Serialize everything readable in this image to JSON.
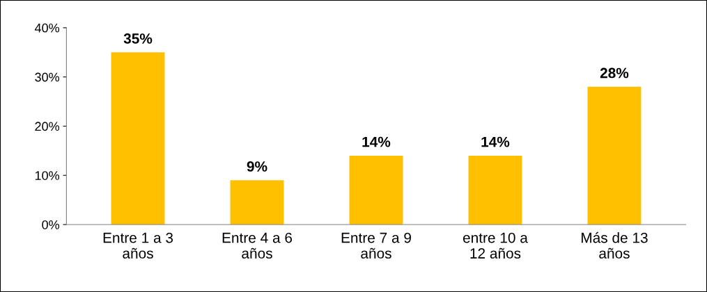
{
  "chart_data": {
    "type": "bar",
    "categories": [
      "Entre 1 a 3\naños",
      "Entre 4 a 6\naños",
      "Entre 7 a 9\naños",
      "entre 10 a\n12 años",
      "Más de 13\naños"
    ],
    "values": [
      35,
      9,
      14,
      14,
      28
    ],
    "value_labels": [
      "35%",
      "9%",
      "14%",
      "14%",
      "28%"
    ],
    "color": "#ffc000",
    "ylim": [
      0,
      40
    ],
    "yticks": [
      {
        "value": 0,
        "label": "0%"
      },
      {
        "value": 10,
        "label": "10%"
      },
      {
        "value": 20,
        "label": "20%"
      },
      {
        "value": 30,
        "label": "30%"
      },
      {
        "value": 40,
        "label": "40%"
      }
    ],
    "grid": false,
    "legend": false
  }
}
